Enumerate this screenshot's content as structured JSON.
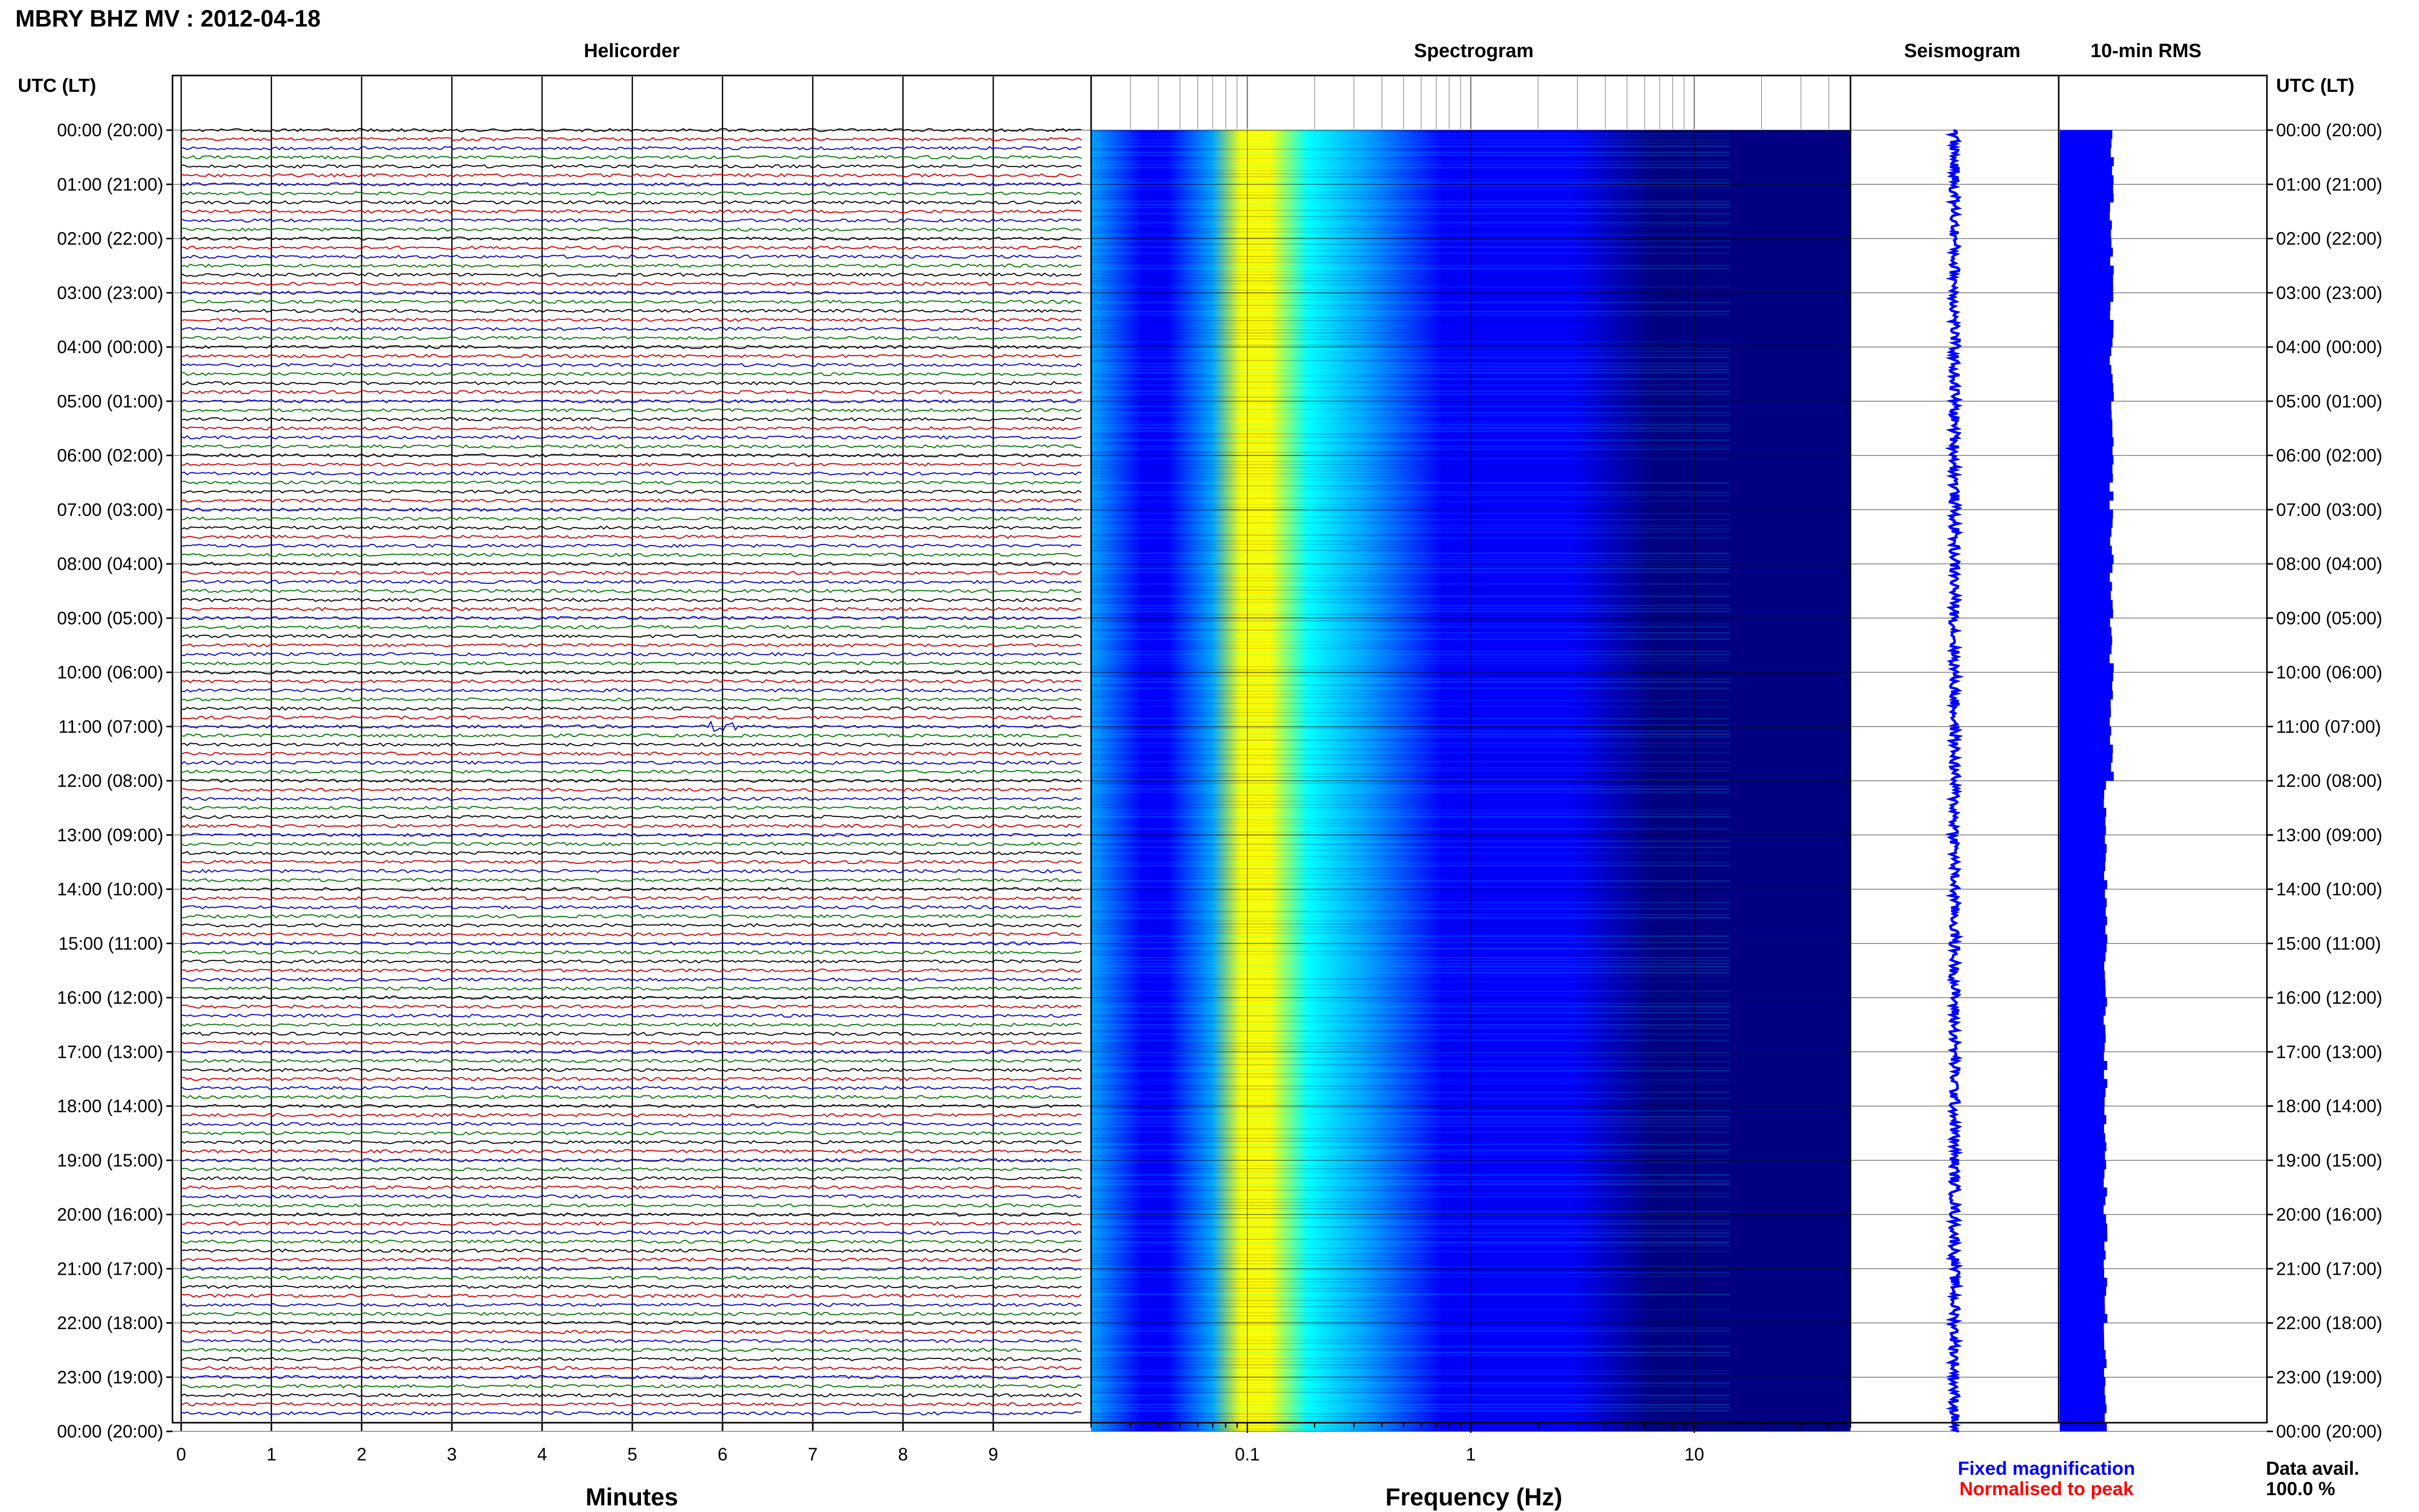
{
  "page_title": "MBRY BHZ MV : 2012-04-18",
  "panels": {
    "helicorder": "Helicorder",
    "spectrogram": "Spectrogram",
    "seismogram": "Seismogram",
    "rms": "10-min RMS"
  },
  "utc_header": "UTC (LT)",
  "x_axis_helicorder": "Minutes",
  "x_axis_spectrogram": "Frequency (Hz)",
  "legend": {
    "fixed": "Fixed magnification",
    "normalised": "Normalised to peak",
    "fixed_color": "#0000ff",
    "normalised_color": "#ff0000"
  },
  "data_avail": {
    "label": "Data avail.",
    "value": "100.0 %"
  },
  "colors": {
    "trace_cycle": [
      "#000000",
      "#cc0000",
      "#0000cc",
      "#007700"
    ],
    "spectrogram_dark": "#000080",
    "rms_fill": "#0000ff"
  },
  "chart_data": [
    {
      "type": "line",
      "name": "helicorder",
      "hour_labels": [
        "00:00 (20:00)",
        "01:00 (21:00)",
        "02:00 (22:00)",
        "03:00 (23:00)",
        "04:00 (00:00)",
        "05:00 (01:00)",
        "06:00 (02:00)",
        "07:00 (03:00)",
        "08:00 (04:00)",
        "09:00 (05:00)",
        "10:00 (06:00)",
        "11:00 (07:00)",
        "12:00 (08:00)",
        "13:00 (09:00)",
        "14:00 (10:00)",
        "15:00 (11:00)",
        "16:00 (12:00)",
        "17:00 (13:00)",
        "18:00 (14:00)",
        "19:00 (15:00)",
        "20:00 (16:00)",
        "21:00 (17:00)",
        "22:00 (18:00)",
        "23:00 (19:00)",
        "00:00 (20:00)"
      ],
      "x_ticks": [
        "0",
        "1",
        "2",
        "3",
        "4",
        "5",
        "6",
        "7",
        "8",
        "9"
      ],
      "xlim": [
        0,
        10
      ],
      "traces_per_hour": 6,
      "trace_minutes": 10,
      "events": [
        {
          "hour": 11,
          "minute": 6.0,
          "amplitude": "small"
        }
      ]
    },
    {
      "type": "heatmap",
      "name": "spectrogram",
      "x_scale": "log",
      "x_ticks": [
        "0.1",
        "1",
        "10"
      ],
      "xlim": [
        0.02,
        50
      ],
      "colormap": [
        "#000080",
        "#0000ff",
        "#00a0ff",
        "#00ffff",
        "#ffff00"
      ],
      "peak_frequency_hz": 0.22
    },
    {
      "type": "line",
      "name": "seismogram",
      "amplitude_level": 0.15
    },
    {
      "type": "bar",
      "name": "10-min RMS",
      "level": 0.26
    }
  ]
}
